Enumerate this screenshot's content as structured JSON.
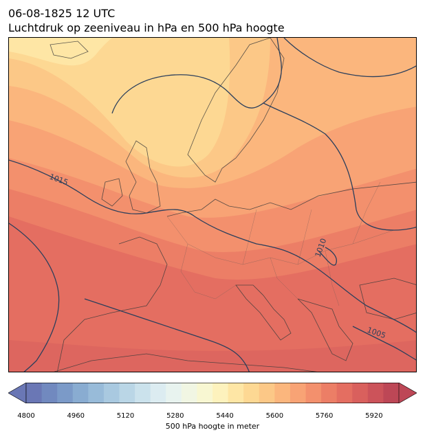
{
  "title": {
    "line1": "06-08-1825 12 UTC",
    "line2": "Luchtdruk op zeeniveau in hPa en 500 hPa hoogte"
  },
  "map": {
    "region": "Europe",
    "isobar_labels": [
      "1015",
      "1010",
      "1005"
    ],
    "isobar_color": "#2b3f5c",
    "coastline_color": "#3b3b3b"
  },
  "colorbar": {
    "title": "500 hPa hoogte in meter",
    "range": [
      4800,
      6000
    ],
    "step": 40,
    "tick_values": [
      4800,
      4960,
      5120,
      5280,
      5440,
      5600,
      5760,
      5920
    ],
    "colors": [
      "#6a77b5",
      "#7189bf",
      "#7b9ac8",
      "#89acd1",
      "#98bbd9",
      "#a9c9e0",
      "#bad6e6",
      "#cbe2ec",
      "#dcecf1",
      "#e8f3ef",
      "#f1f6e3",
      "#f8f7d2",
      "#fdf2bd",
      "#fee6a5",
      "#fdd893",
      "#fcc887",
      "#fbb67d",
      "#f8a375",
      "#f3906d",
      "#ec7e66",
      "#e46e61",
      "#d9605d",
      "#cc535a",
      "#bd4756"
    ],
    "extend": "both"
  }
}
